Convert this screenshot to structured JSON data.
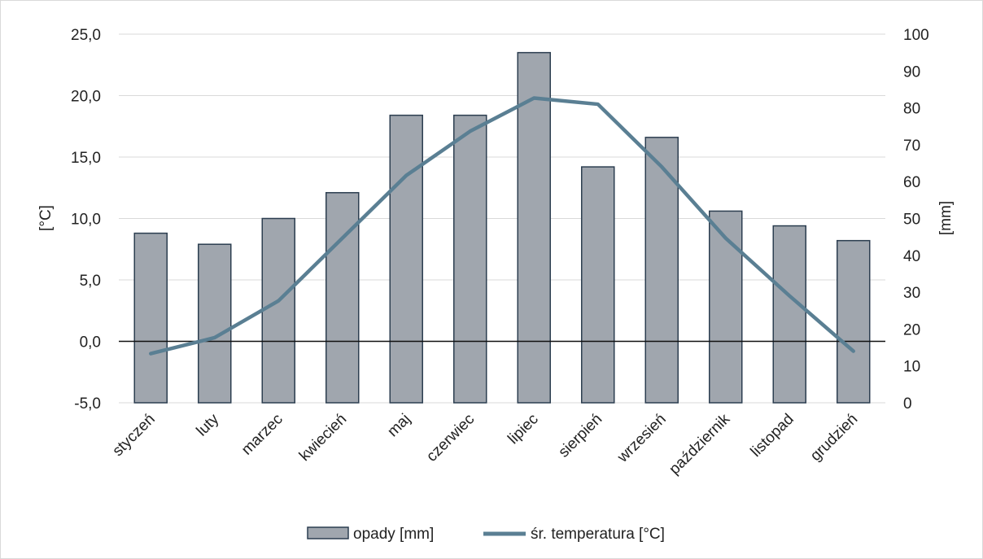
{
  "chart_data": {
    "type": "bar+line",
    "categories": [
      "styczeń",
      "luty",
      "marzec",
      "kwiecień",
      "maj",
      "czerwiec",
      "lipiec",
      "sierpień",
      "wrzesień",
      "październik",
      "listopad",
      "grudzień"
    ],
    "series": [
      {
        "name": "opady [mm]",
        "type": "bar",
        "axis": "right",
        "color": "#a0a6ae",
        "stroke": "#2c3e50",
        "values": [
          46,
          43,
          50,
          57,
          78,
          78,
          95,
          64,
          72,
          52,
          48,
          44
        ]
      },
      {
        "name": "śr. temperatura [°C]",
        "type": "line",
        "axis": "left",
        "color": "#5a7f93",
        "values": [
          -1.0,
          0.3,
          3.3,
          8.4,
          13.5,
          17.1,
          19.8,
          19.3,
          14.2,
          8.4,
          3.7,
          -0.8
        ]
      }
    ],
    "y_left": {
      "label": "[°C]",
      "range": [
        -5,
        25
      ],
      "ticks": [
        "-5,0",
        "0,0",
        "5,0",
        "10,0",
        "15,0",
        "20,0",
        "25,0"
      ]
    },
    "y_right": {
      "label": "[mm]",
      "range": [
        0,
        100
      ],
      "ticks": [
        "0",
        "10",
        "20",
        "30",
        "40",
        "50",
        "60",
        "70",
        "80",
        "90",
        "100"
      ]
    },
    "grid": true,
    "legend": "bottom"
  }
}
